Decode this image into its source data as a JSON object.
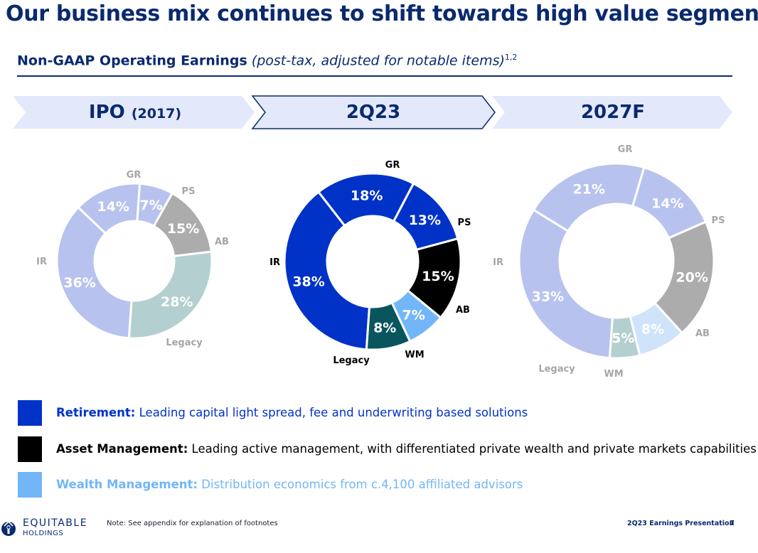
{
  "title": "Our business mix continues to shift towards high value segments",
  "subtitle": {
    "main": "Non-GAAP Operating Earnings",
    "note": "(post-tax, adjusted for notable items)",
    "sup": "1,2"
  },
  "chevrons": [
    {
      "label": "IPO",
      "sub": "(2017)"
    },
    {
      "label": "2Q23",
      "sub": ""
    },
    {
      "label": "2027F",
      "sub": ""
    }
  ],
  "chart_data": [
    {
      "type": "pie",
      "title": "IPO (2017)",
      "categories": [
        "IR",
        "GR",
        "PS",
        "AB",
        "Legacy"
      ],
      "values": [
        36,
        14,
        7,
        15,
        28
      ],
      "value_labels": [
        "36%",
        "14%",
        "7%",
        "15%",
        "28%"
      ],
      "colors": [
        "#b7c3ee",
        "#b7c3ee",
        "#b7c3ee",
        "#acacac",
        "#b4cfd0"
      ],
      "label_color": "#a6a6a6"
    },
    {
      "type": "pie",
      "title": "2Q23",
      "categories": [
        "IR",
        "GR",
        "PS",
        "AB",
        "WM",
        "Legacy"
      ],
      "values": [
        38,
        18,
        13,
        15,
        7,
        8
      ],
      "value_labels": [
        "38%",
        "18%",
        "13%",
        "15%",
        "7%",
        "8%"
      ],
      "colors": [
        "#0032c8",
        "#0032c8",
        "#0032c8",
        "#000000",
        "#72b6f8",
        "#08555e"
      ],
      "label_color": "#000000"
    },
    {
      "type": "pie",
      "title": "2027F",
      "categories": [
        "IR",
        "GR",
        "PS",
        "AB",
        "WM",
        "Legacy"
      ],
      "values": [
        33,
        21,
        14,
        20,
        8,
        5
      ],
      "value_labels": [
        "33%",
        "21%",
        "14%",
        "20%",
        "8%",
        "5%"
      ],
      "colors": [
        "#b7c3ee",
        "#b7c3ee",
        "#b7c3ee",
        "#acacac",
        "#cfe4fb",
        "#b4cfd0"
      ],
      "label_color": "#a6a6a6"
    }
  ],
  "legend": [
    {
      "title": "Retirement:",
      "text": "Leading capital light spread, fee and underwriting based solutions",
      "color": "#0032c8"
    },
    {
      "title": "Asset Management:",
      "text": "Leading active management, with differentiated private wealth and private markets capabilities",
      "color": "#000000"
    },
    {
      "title": "Wealth Management:",
      "text": "Distribution economics from c.4,100 affiliated advisors",
      "color": "#72b6f8"
    }
  ],
  "footer": {
    "logo_name": "EQUITABLE",
    "logo_sub": "HOLDINGS",
    "note": "Note: See appendix for explanation of footnotes",
    "presentation": "2Q23 Earnings Presentation",
    "page": "7"
  }
}
